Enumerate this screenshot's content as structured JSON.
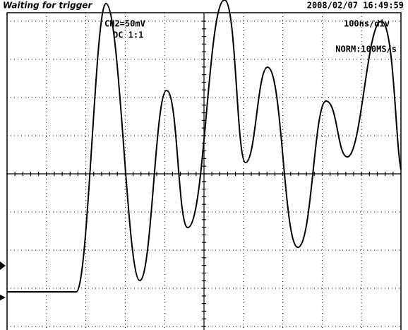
{
  "header": {
    "status": "Waiting for trigger",
    "datetime": "2008/02/07  16:49:59"
  },
  "channel": {
    "scale": "CH2=50mV",
    "coupling": "DC  1:1"
  },
  "timebase": "100ns/div",
  "acquisition": "NORM:100MS/s"
}
